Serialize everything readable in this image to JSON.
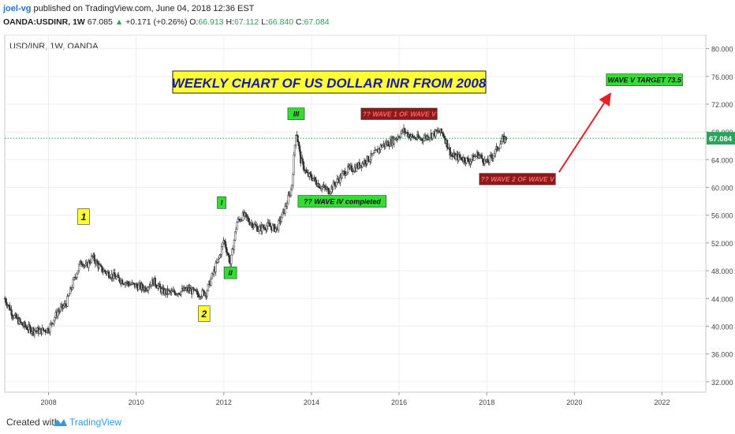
{
  "header": {
    "author": "joel-vg",
    "published_text": "published on TradingView.com, June 04, 2018 12:36 EST",
    "symbol_line": "OANDA:USDINR, 1W",
    "last": "67.085",
    "change_arrow": "▲",
    "change": "+0.171 (+0.26%)",
    "o_label": "O:",
    "o": "66.913",
    "h_label": "H:",
    "h": "67.112",
    "l_label": "L:",
    "l": "66.840",
    "c_label": "C:",
    "c": "67.084"
  },
  "pane_title": "USD/INR, 1W, OANDA",
  "footer": {
    "created_with": "Created with",
    "brand": "TradingView"
  },
  "colors": {
    "up": "#26a65b",
    "candle": "#333333",
    "price_line": "#26a65b",
    "arrow": "#e8202a",
    "yellow_label": "#ffff33",
    "green_label": "#33dd33",
    "dark_red_label": "#8b1a1a"
  },
  "chart_data": {
    "type": "candlestick",
    "x_axis": {
      "ticks": [
        "2008",
        "2010",
        "2012",
        "2014",
        "2016",
        "2018",
        "2020",
        "2022"
      ],
      "range": [
        2007.0,
        2023.0
      ]
    },
    "y_axis": {
      "ticks": [
        "80.000",
        "76.000",
        "72.000",
        "68.000",
        "64.000",
        "60.000",
        "56.000",
        "52.000",
        "48.000",
        "44.000",
        "40.000",
        "36.000",
        "32.000"
      ],
      "range": [
        30.5,
        82.0
      ],
      "side": "right"
    },
    "last_price_label": "67.084",
    "last_price": 67.084,
    "grid": true,
    "series": [
      {
        "x": [
          2007.0,
          2007.2,
          2007.4,
          2007.6,
          2007.8,
          2008.0,
          2008.2,
          2008.4,
          2008.6,
          2008.75,
          2008.85,
          2009.0,
          2009.2,
          2009.4,
          2009.6,
          2009.8,
          2010.0,
          2010.2,
          2010.4,
          2010.6,
          2010.8,
          2011.0,
          2011.2,
          2011.4,
          2011.6,
          2011.75,
          2011.9,
          2012.0,
          2012.15,
          2012.3,
          2012.45,
          2012.6,
          2012.8,
          2013.0,
          2013.2,
          2013.4,
          2013.55,
          2013.65,
          2013.75,
          2013.9,
          2014.0,
          2014.2,
          2014.4,
          2014.6,
          2014.8,
          2015.0,
          2015.2,
          2015.4,
          2015.6,
          2015.8,
          2016.0,
          2016.1,
          2016.3,
          2016.5,
          2016.7,
          2016.9,
          2017.0,
          2017.2,
          2017.4,
          2017.6,
          2017.8,
          2018.0,
          2018.2,
          2018.35,
          2018.45
        ],
        "values": [
          44.0,
          41.5,
          40.2,
          39.5,
          39.3,
          39.6,
          42.0,
          43.2,
          47.0,
          49.5,
          48.5,
          50.0,
          48.2,
          47.5,
          46.8,
          46.2,
          45.8,
          45.5,
          46.5,
          45.0,
          44.8,
          45.0,
          45.3,
          44.6,
          44.9,
          47.5,
          50.0,
          52.5,
          49.0,
          55.0,
          56.0,
          55.0,
          54.0,
          54.5,
          54.0,
          57.0,
          60.0,
          68.5,
          64.0,
          61.8,
          61.5,
          60.2,
          59.5,
          61.0,
          62.5,
          62.8,
          63.7,
          64.5,
          66.0,
          66.5,
          67.5,
          68.2,
          67.2,
          67.0,
          67.5,
          68.0,
          67.8,
          64.5,
          64.3,
          63.8,
          64.8,
          63.5,
          65.2,
          66.8,
          67.08
        ]
      }
    ],
    "title_box": "WEEKLY CHART OF US DOLLAR INR FROM 2008",
    "annotations": [
      {
        "text": "1",
        "x": 2008.8,
        "y": 55.8,
        "style": "yellow"
      },
      {
        "text": "2",
        "x": 2011.55,
        "y": 41.8,
        "style": "yellow"
      },
      {
        "text": "I",
        "x": 2011.95,
        "y": 57.8,
        "style": "green"
      },
      {
        "text": "II",
        "x": 2012.15,
        "y": 47.7,
        "style": "green"
      },
      {
        "text": "III",
        "x": 2013.65,
        "y": 70.6,
        "style": "green"
      },
      {
        "text": "?? WAVE  IV completed",
        "x": 2014.7,
        "y": 58.0,
        "style": "green"
      },
      {
        "text": "?? WAVE 1 OF WAVE V",
        "x": 2016.0,
        "y": 70.6,
        "style": "darkred"
      },
      {
        "text": "?? WAVE 2 OF WAVE V",
        "x": 2018.7,
        "y": 61.2,
        "style": "darkred"
      },
      {
        "text": "WAVE V TARGET 73.5",
        "x": 2021.6,
        "y": 75.5,
        "style": "green"
      }
    ],
    "arrow": {
      "from": [
        2019.65,
        62.2
      ],
      "to": [
        2020.8,
        73.3
      ]
    }
  }
}
